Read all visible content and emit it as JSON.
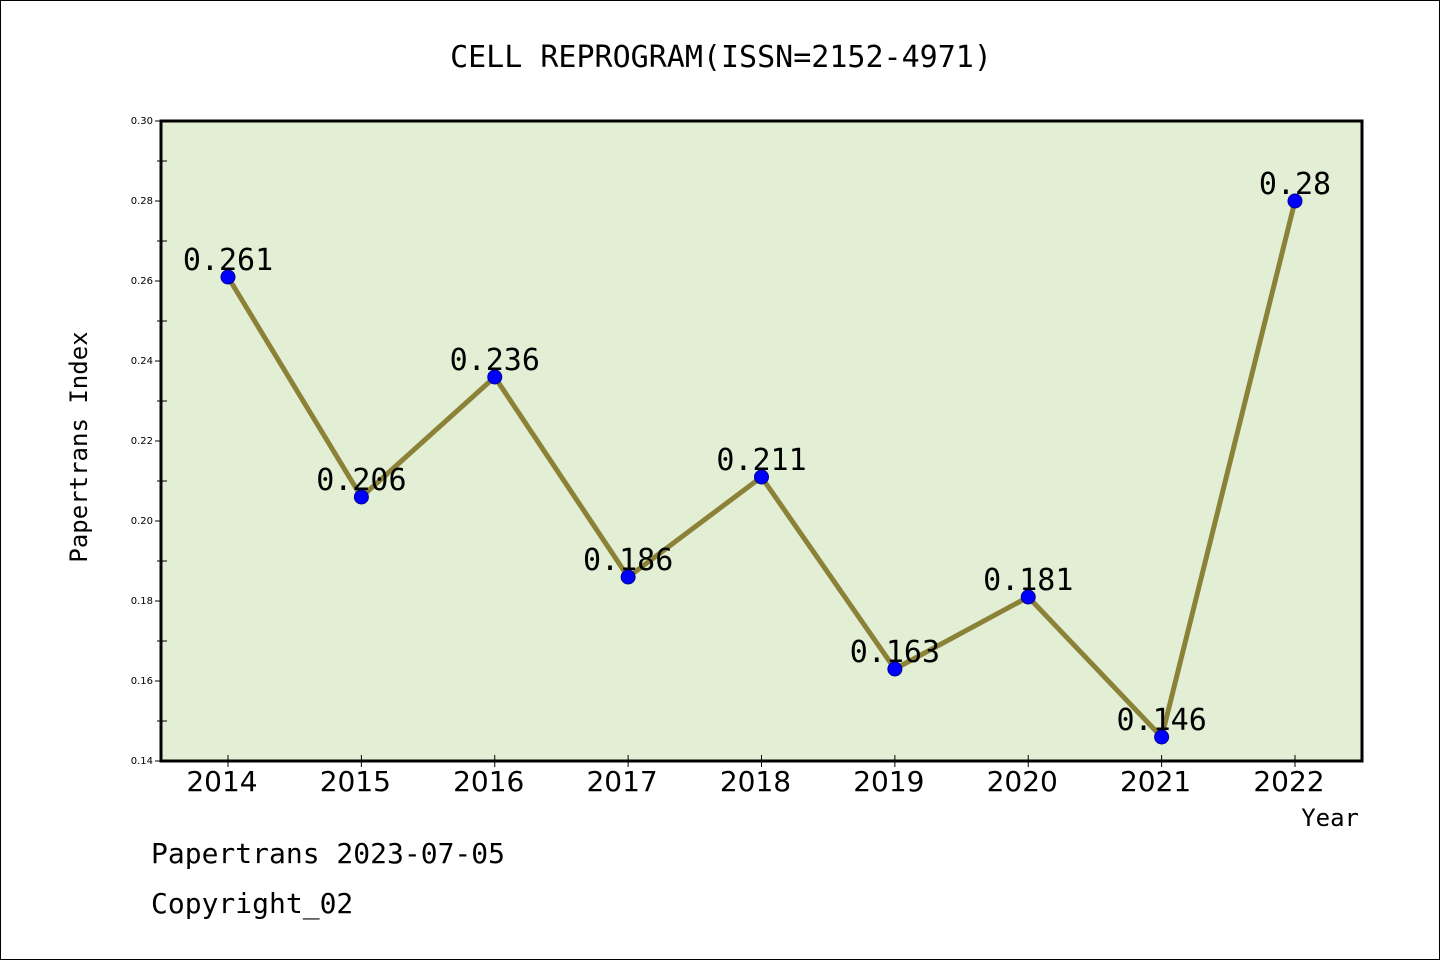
{
  "chart_data": {
    "type": "line",
    "title": "CELL REPROGRAM(ISSN=2152-4971)",
    "xlabel": "Year",
    "ylabel": "Papertrans Index",
    "categories": [
      "2014",
      "2015",
      "2016",
      "2017",
      "2018",
      "2019",
      "2020",
      "2021",
      "2022"
    ],
    "values": [
      0.261,
      0.206,
      0.236,
      0.186,
      0.211,
      0.163,
      0.181,
      0.146,
      0.28
    ],
    "data_labels": [
      "0.261",
      "0.206",
      "0.236",
      "0.186",
      "0.211",
      "0.163",
      "0.181",
      "0.146",
      "0.28"
    ],
    "ylim": [
      0.14,
      0.3
    ],
    "yticks": [
      0.14,
      0.16,
      0.18,
      0.2,
      0.22,
      0.24,
      0.26,
      0.28,
      0.3
    ],
    "ytick_labels": [
      "0.14",
      "0.16",
      "0.18",
      "0.20",
      "0.22",
      "0.24",
      "0.26",
      "0.28",
      "0.30"
    ],
    "grid": false,
    "colors": {
      "plot_background": "#e2efd5",
      "line": "#8b8237",
      "marker": "#0000ff"
    }
  },
  "footer": {
    "date_line": "Papertrans 2023-07-05",
    "copyright": "Copyright_02"
  }
}
